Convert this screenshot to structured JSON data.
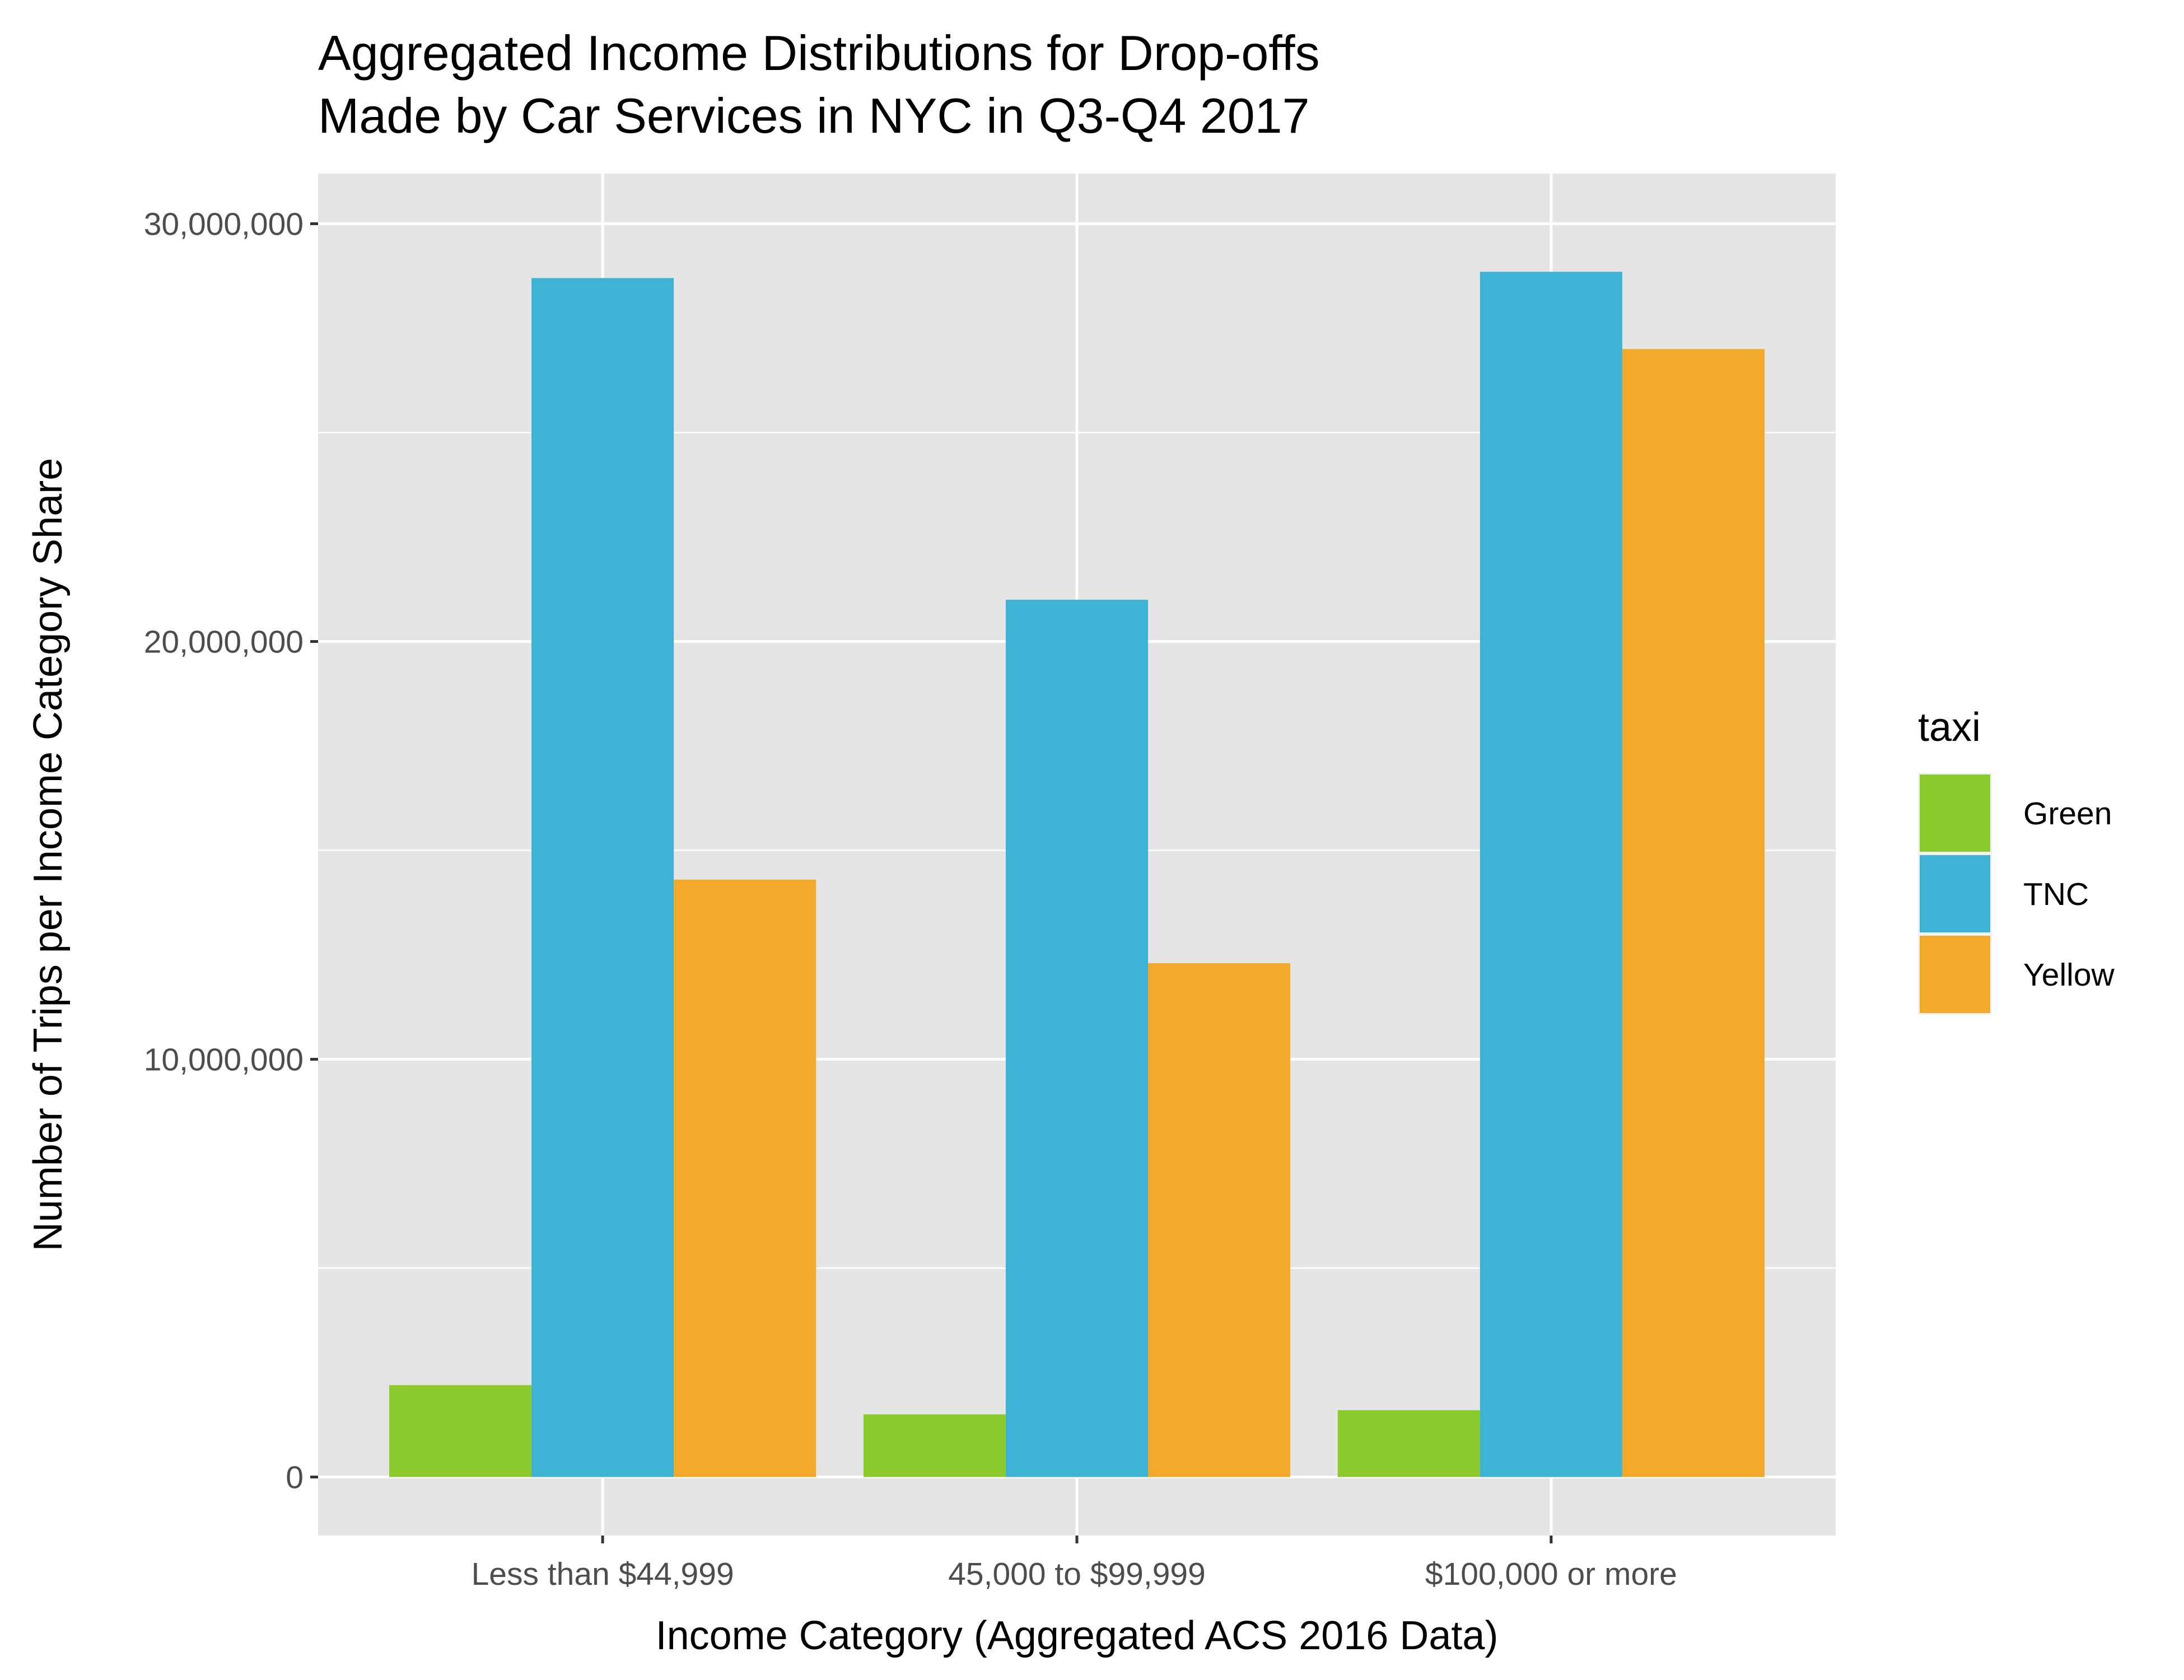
{
  "chart_data": {
    "type": "bar",
    "title": [
      "Aggregated Income Distributions for Drop-offs",
      "Made by Car Services in NYC in Q3-Q4 2017"
    ],
    "xlabel": "Income Category (Aggregated ACS 2016 Data)",
    "ylabel": "Number of Trips per Income Category Share",
    "categories": [
      "Less than $44,999",
      "45,000 to $99,999",
      "$100,000 or more"
    ],
    "ylim": [
      -1400000,
      31200000
    ],
    "yticks": [
      0,
      10000000,
      20000000,
      30000000
    ],
    "ytick_labels": [
      "0",
      "10,000,000",
      "20,000,000",
      "30,000,000"
    ],
    "grid": true,
    "legend": {
      "title": "taxi",
      "position": "right"
    },
    "series": [
      {
        "name": "Green",
        "color": "#8bcb2b",
        "values": [
          2200000,
          1500000,
          1600000
        ]
      },
      {
        "name": "TNC",
        "color": "#3eb2d3",
        "values": [
          28700000,
          21000000,
          28850000
        ]
      },
      {
        "name": "Yellow",
        "color": "#f2a92a",
        "values": [
          14300000,
          12300000,
          27000000
        ]
      }
    ],
    "panel_background": "#e5e5e5",
    "grid_color": "#ffffff"
  }
}
